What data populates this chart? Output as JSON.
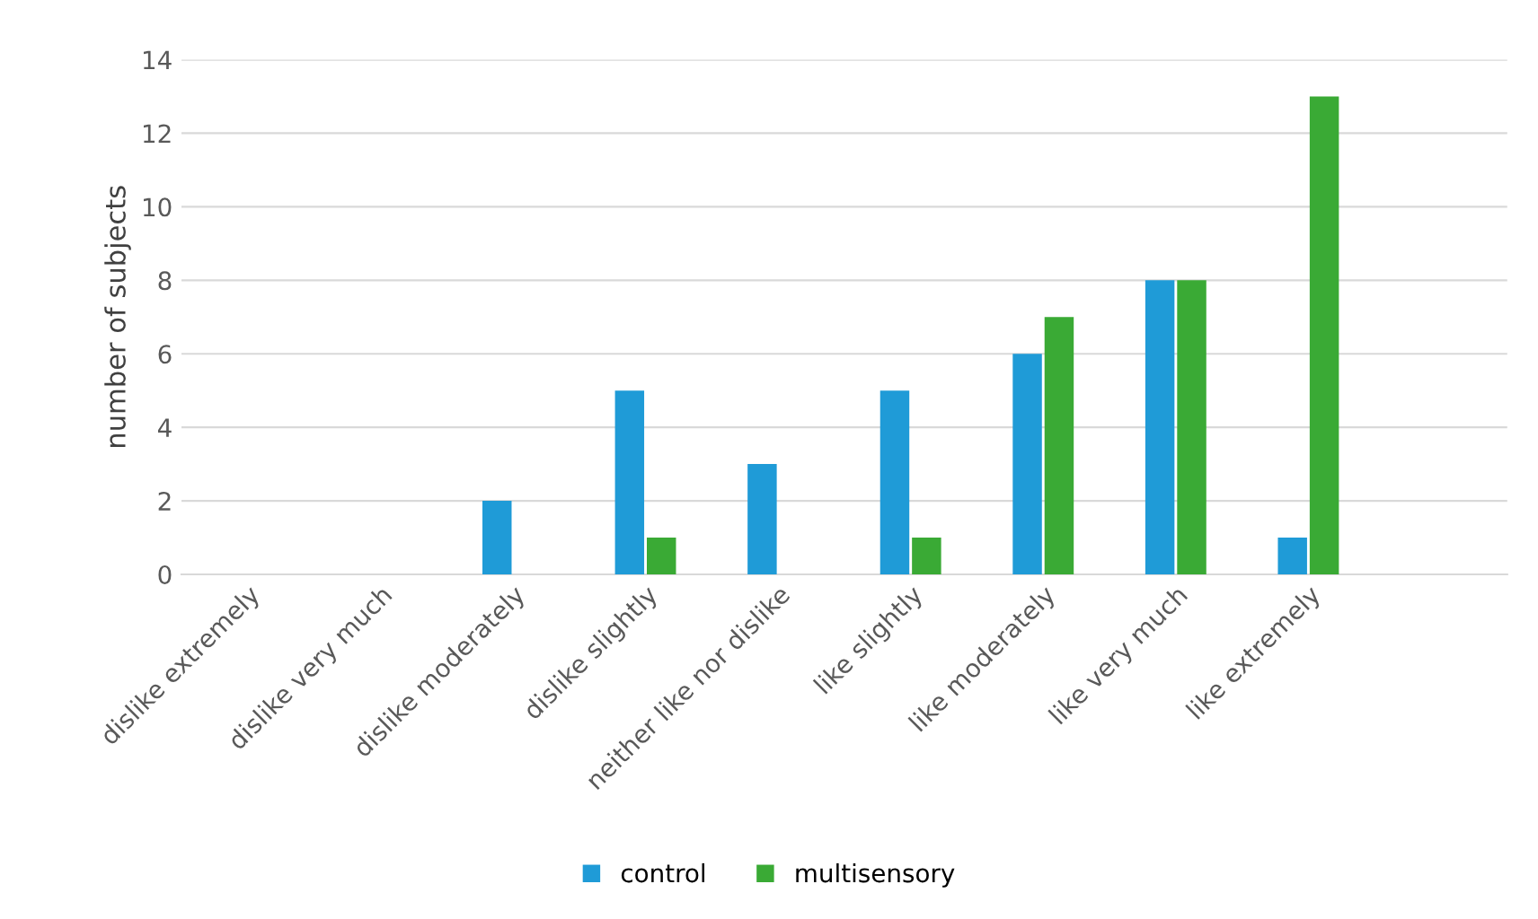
{
  "chart_data": {
    "type": "bar",
    "ylabel": "number of subjects",
    "categories": [
      "dislike extremely",
      "dislike very much",
      "dislike moderately",
      "dislike slightly",
      "neither like nor dislike",
      "like slightly",
      "like moderately",
      "like very much",
      "like extremely",
      null
    ],
    "series": [
      {
        "name": "control",
        "color": "#1f9bd7",
        "values": [
          0,
          0,
          2,
          5,
          3,
          5,
          6,
          8,
          1,
          null
        ]
      },
      {
        "name": "multisensory",
        "color": "#3aaa35",
        "values": [
          0,
          0,
          0,
          1,
          0,
          1,
          7,
          8,
          13,
          null
        ]
      }
    ],
    "ylim": [
      0,
      14
    ],
    "yticks": [
      0,
      2,
      4,
      6,
      8,
      10,
      12,
      14
    ],
    "grid": "y",
    "legend": "bottom"
  }
}
